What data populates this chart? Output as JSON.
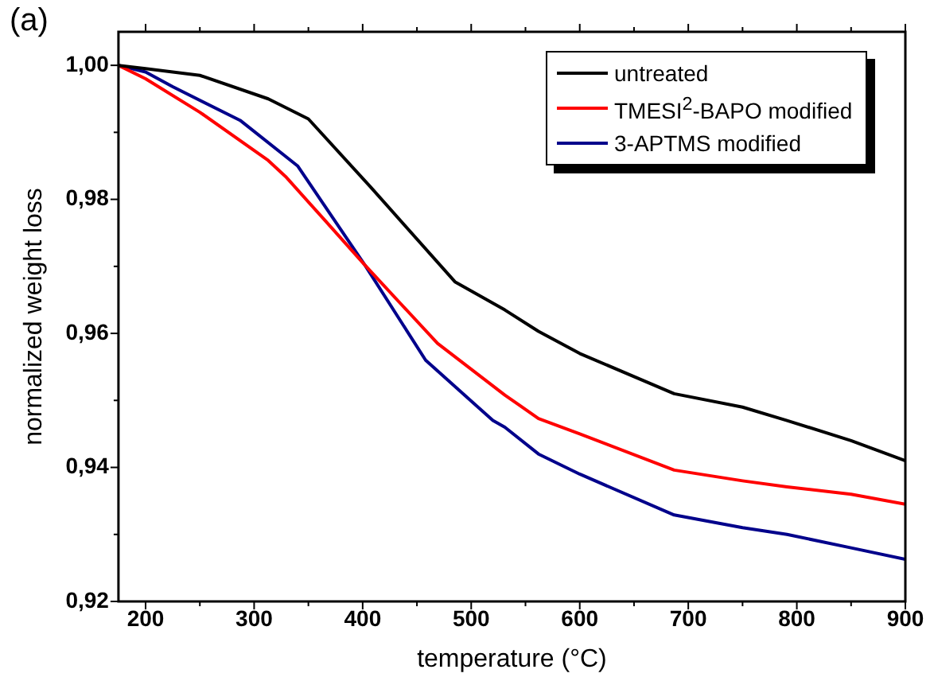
{
  "chart_data": {
    "type": "line",
    "title": "(a)",
    "xlabel": "temperature (°C)",
    "ylabel": "normalized weight loss",
    "xlim": [
      175,
      900
    ],
    "xticks": [
      200,
      300,
      400,
      500,
      600,
      700,
      800,
      900
    ],
    "ylim": [
      0.92,
      1.005
    ],
    "yticks": [
      {
        "value": 0.92,
        "label": "0,92"
      },
      {
        "value": 0.94,
        "label": "0,94"
      },
      {
        "value": 0.96,
        "label": "0,96"
      },
      {
        "value": 0.98,
        "label": "0,98"
      },
      {
        "value": 1.0,
        "label": "1,00"
      }
    ],
    "legend": "top right",
    "grid": false,
    "marker": "none",
    "line_style": "solid",
    "series": [
      {
        "name": "untreated",
        "color": "#000000",
        "x": [
          175,
          200,
          250,
          313,
          350,
          407,
          485,
          531,
          562,
          600,
          687,
          750,
          791,
          850,
          900
        ],
        "values": [
          1.0,
          0.9995,
          0.9985,
          0.995,
          0.992,
          0.9819,
          0.9677,
          0.9635,
          0.9603,
          0.957,
          0.951,
          0.949,
          0.947,
          0.944,
          0.941
        ]
      },
      {
        "name": "TMESI$^{2}$-BAPO modified",
        "color": "#ff0000",
        "x": [
          175,
          200,
          250,
          313,
          329,
          365,
          402,
          469,
          531,
          562,
          600,
          687,
          750,
          791,
          850,
          900
        ],
        "values": [
          1.0,
          0.998,
          0.993,
          0.9858,
          0.9834,
          0.9769,
          0.9702,
          0.9585,
          0.9508,
          0.9473,
          0.945,
          0.9396,
          0.938,
          0.9371,
          0.936,
          0.9345
        ]
      },
      {
        "name": "3-APTMS modified",
        "color": "#00008b",
        "x": [
          175,
          200,
          225,
          287,
          340,
          402,
          458,
          520,
          531,
          562,
          600,
          687,
          750,
          791,
          850,
          900
        ],
        "values": [
          1.0,
          0.999,
          0.9968,
          0.9918,
          0.985,
          0.9702,
          0.956,
          0.947,
          0.946,
          0.942,
          0.939,
          0.9329,
          0.931,
          0.93,
          0.928,
          0.9263
        ]
      }
    ]
  }
}
